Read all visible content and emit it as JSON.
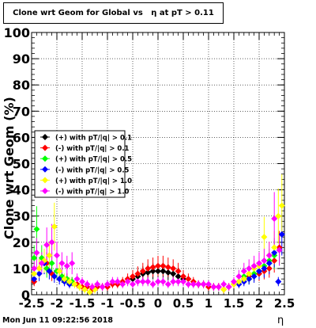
{
  "page": {
    "title": "Clone wrt Geom for Global vs   η at pT > 0.11",
    "footer": "Mon Jun 11 09:22:56 2018"
  },
  "chart_data": {
    "type": "scatter",
    "title": "Clone wrt Geom for Global vs   η at pT > 0.11",
    "xlabel": "η",
    "ylabel": "Clone wrt Geom (%)",
    "xlim": [
      -2.5,
      2.5
    ],
    "ylim": [
      0,
      100
    ],
    "grid": true,
    "legend_position": "left",
    "x_ticks": [
      "-2.5",
      "-2",
      "-1.5",
      "-1",
      "-0.5",
      "0",
      "0.5",
      "1",
      "1.5",
      "2",
      "2.5"
    ],
    "y_ticks": [
      "0",
      "10",
      "20",
      "30",
      "40",
      "50",
      "60",
      "70",
      "80",
      "90",
      "100"
    ],
    "series": [
      {
        "name": "(+) with pT/|q| > 0.1",
        "color": "#000000",
        "x": [
          -0.5,
          -0.4,
          -0.3,
          -0.2,
          -0.1,
          0.0,
          0.1,
          0.2,
          0.3,
          0.4,
          0.5
        ],
        "y": [
          6,
          7,
          8,
          8.5,
          9,
          9,
          9,
          8.5,
          8,
          7,
          6
        ]
      },
      {
        "name": "(-) with pT/|q| > 0.1",
        "color": "#ff0000",
        "x": [
          -2.45,
          -2.35,
          -2.2,
          -2.1,
          -2.0,
          -1.9,
          -1.8,
          -1.7,
          -1.6,
          -1.5,
          -1.4,
          -1.3,
          -1.2,
          -1.1,
          -1.0,
          -0.9,
          -0.8,
          -0.7,
          -0.6,
          -0.5,
          -0.4,
          -0.3,
          -0.2,
          -0.1,
          0.0,
          0.1,
          0.2,
          0.3,
          0.4,
          0.5,
          0.6,
          0.7,
          0.8,
          0.9,
          1.0,
          1.1,
          1.2,
          1.3,
          1.4,
          1.5,
          1.6,
          1.7,
          1.8,
          1.9,
          2.0,
          2.1,
          2.2,
          2.3,
          2.4
        ],
        "y": [
          5,
          10,
          12,
          8,
          9,
          7,
          6,
          5,
          4,
          3,
          3,
          2,
          3,
          3,
          3,
          4,
          4,
          5,
          6,
          7,
          8,
          9,
          10,
          10.5,
          11,
          11,
          10.5,
          10,
          9,
          7,
          6,
          5,
          4,
          4,
          3,
          3,
          3,
          2,
          3,
          4,
          5,
          6,
          7,
          8,
          8,
          9,
          10,
          13,
          18
        ]
      },
      {
        "name": "(+) with pT/|q| > 0.5",
        "color": "#00ff00",
        "x": [
          -2.45,
          -2.4,
          -2.3,
          -2.2,
          -2.1,
          -2.0,
          -1.9,
          -1.8,
          -1.7,
          1.6,
          1.7,
          1.8,
          1.9,
          2.0,
          2.1,
          2.2,
          2.3,
          2.4
        ],
        "y": [
          14,
          25,
          14,
          10,
          12,
          9,
          7,
          6,
          5,
          5,
          7,
          6,
          8,
          9,
          11,
          13,
          15,
          17
        ]
      },
      {
        "name": "(-) with pT/|q| > 0.5",
        "color": "#0000ff",
        "x": [
          -2.45,
          -2.35,
          -2.25,
          -2.15,
          -2.05,
          -1.95,
          -1.85,
          -1.75,
          1.6,
          1.7,
          1.8,
          1.9,
          2.0,
          2.1,
          2.2,
          2.3,
          2.38,
          2.45
        ],
        "y": [
          6,
          8,
          12,
          9,
          7,
          6,
          5,
          4,
          4,
          5,
          6,
          7,
          9,
          10,
          12,
          16,
          5,
          23
        ]
      },
      {
        "name": "(+) with pT/|q| > 1.0",
        "color": "#ffff00",
        "x": [
          -2.45,
          -2.35,
          -2.25,
          -2.15,
          -2.05,
          -1.95,
          -1.85,
          -1.75,
          -1.65,
          -1.55,
          -1.45,
          -1.35,
          -1.25,
          1.3,
          1.4,
          1.5,
          1.6,
          1.7,
          1.8,
          1.9,
          2.0,
          2.1,
          2.2,
          2.3,
          2.38,
          2.45
        ],
        "y": [
          8,
          10,
          13,
          15,
          26,
          9,
          6,
          5,
          4,
          3,
          2,
          1,
          2,
          2,
          3,
          4,
          5,
          6,
          8,
          10,
          11,
          22,
          15,
          18,
          30,
          34
        ]
      },
      {
        "name": "(-) with pT/|q| > 1.0",
        "color": "#ff00ff",
        "x": [
          -2.45,
          -2.4,
          -2.3,
          -2.2,
          -2.1,
          -2.0,
          -1.9,
          -1.8,
          -1.7,
          -1.6,
          -1.5,
          -1.4,
          -1.3,
          -1.2,
          -1.1,
          -1.0,
          -0.9,
          -0.8,
          -0.7,
          -0.6,
          -0.5,
          -0.4,
          -0.3,
          -0.2,
          -0.1,
          0.0,
          0.1,
          0.2,
          0.3,
          0.4,
          0.5,
          0.6,
          0.7,
          0.8,
          0.9,
          1.0,
          1.1,
          1.2,
          1.3,
          1.4,
          1.5,
          1.6,
          1.7,
          1.8,
          1.9,
          2.0,
          2.1,
          2.2,
          2.3,
          2.4
        ],
        "y": [
          10,
          16,
          12,
          19,
          20,
          15,
          12,
          11,
          12,
          6,
          5,
          4,
          3,
          4,
          3,
          4,
          5,
          5,
          4,
          5,
          4,
          5,
          5,
          5,
          4,
          5,
          5,
          4,
          5,
          5,
          5,
          4,
          4,
          4,
          4,
          4,
          3,
          3,
          4,
          3,
          5,
          7,
          9,
          10,
          11,
          12,
          13,
          15,
          29,
          17
        ]
      }
    ]
  }
}
